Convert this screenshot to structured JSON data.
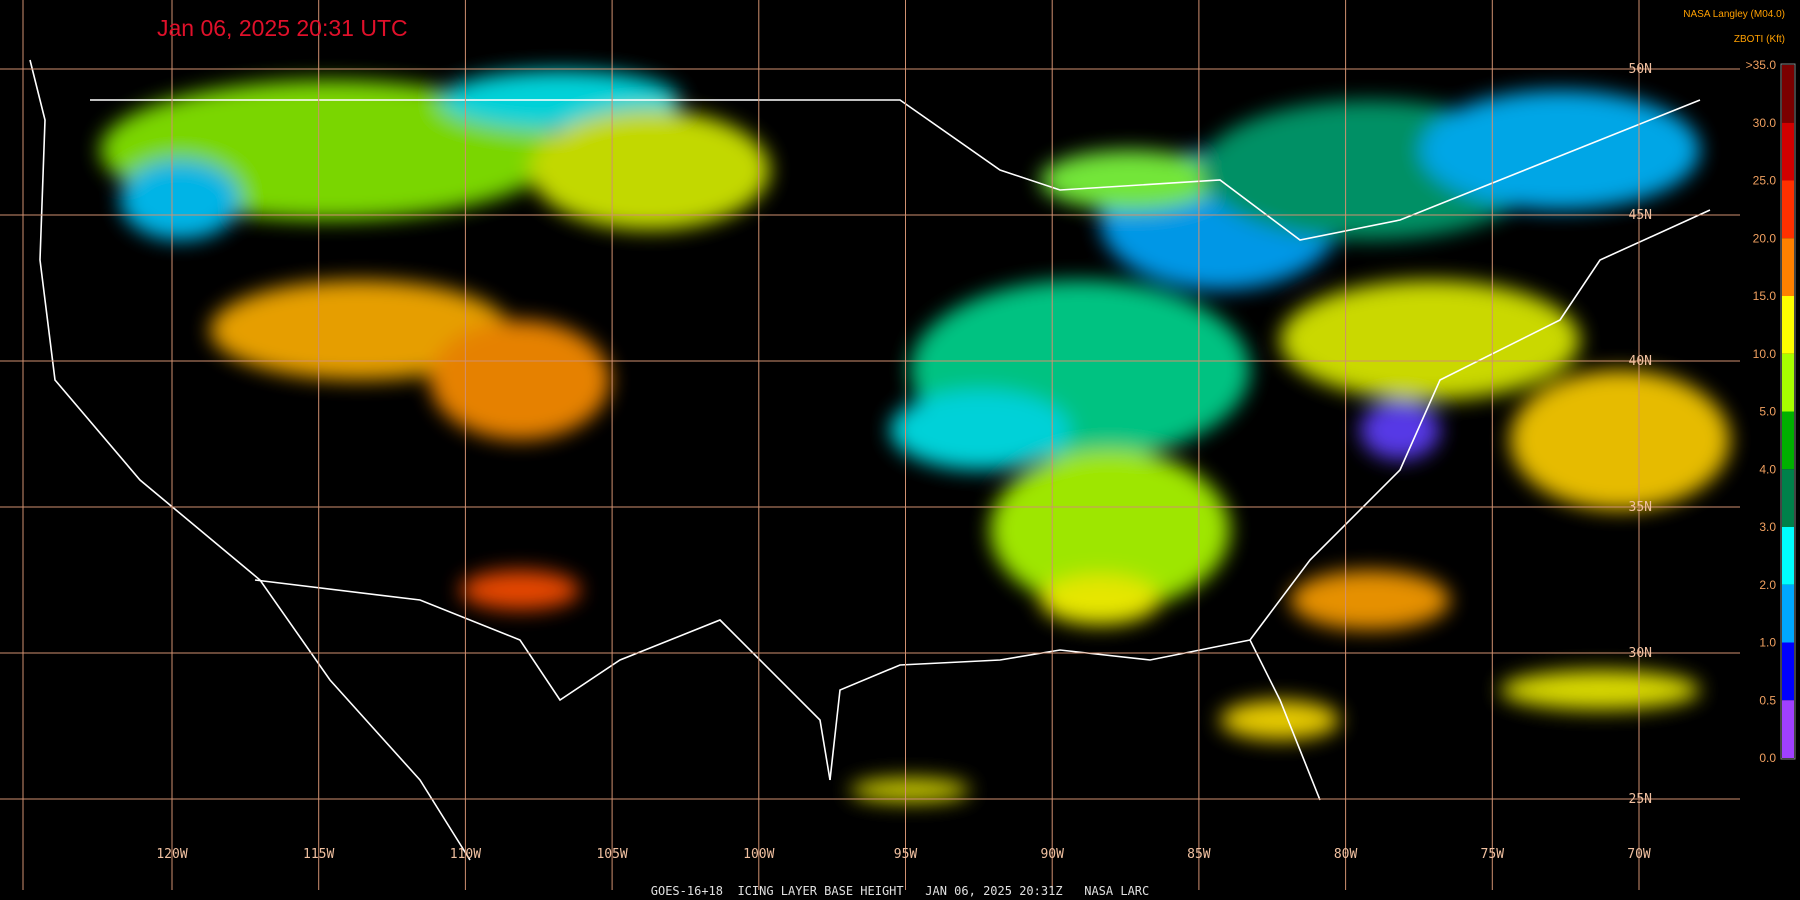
{
  "header": {
    "timestamp": "Jan 06, 2025 20:31 UTC",
    "source": "NASA Langley (M04.0)",
    "product_code": "ZBOTI (Kft)"
  },
  "footer": "GOES-16+18  ICING LAYER BASE HEIGHT   JAN 06, 2025 20:31Z   NASA LARC",
  "longitudes": [
    "120W",
    "115W",
    "110W",
    "105W",
    "100W",
    "95W",
    "90W",
    "85W",
    "80W",
    "75W",
    "70W"
  ],
  "latitudes": [
    "50N",
    "45N",
    "40N",
    "35N",
    "30N",
    "25N"
  ],
  "legend": {
    "labels": [
      ">35.0",
      "30.0",
      "25.0",
      "20.0",
      "15.0",
      "10.0",
      "5.0",
      "4.0",
      "3.0",
      "2.0",
      "1.0",
      "0.5",
      "0.0"
    ],
    "colors": [
      "#7a0000",
      "#d00000",
      "#ff3000",
      "#ff8000",
      "#ffff00",
      "#a8ff00",
      "#00b000",
      "#00804a",
      "#00ffff",
      "#00a8ff",
      "#0000ff",
      "#a040ff"
    ]
  }
}
